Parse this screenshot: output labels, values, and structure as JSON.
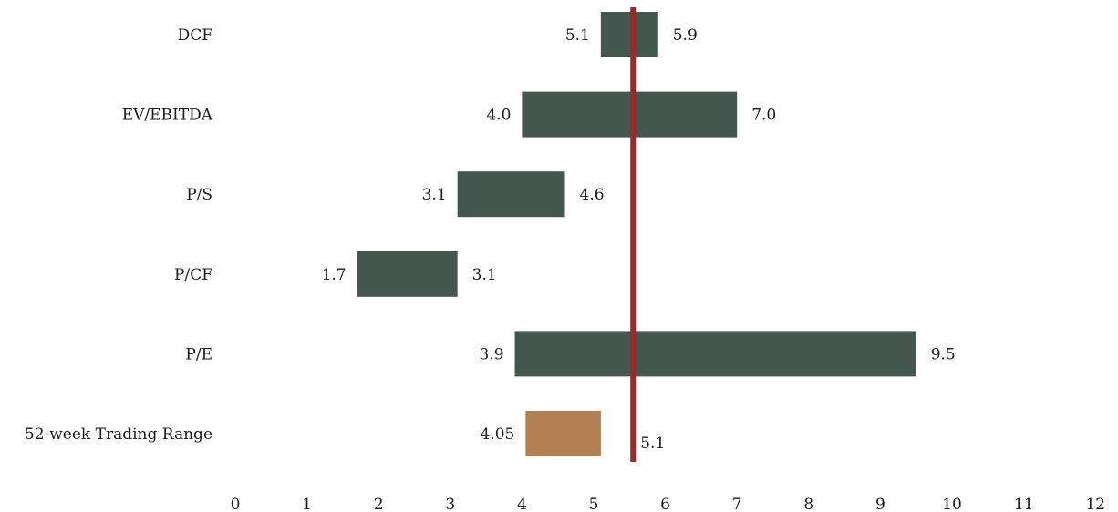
{
  "chart_data": {
    "type": "bar",
    "orientation": "horizontal-range",
    "title": "",
    "xlabel": "",
    "ylabel": "",
    "xlim": [
      0,
      12
    ],
    "x_ticks": [
      "0",
      "1",
      "2",
      "3",
      "4",
      "5",
      "6",
      "7",
      "8",
      "9",
      "10",
      "11",
      "12"
    ],
    "grid": false,
    "legend": "none",
    "colors": {
      "method_bar": "#43574f",
      "trading_range_bar": "#b38052",
      "current_price_line": "#9b2a2a",
      "text": "#1a1a1a"
    },
    "categories": [
      "DCF",
      "EV/EBITDA",
      "P/S",
      "P/CF",
      "P/E",
      "52-week Trading Range"
    ],
    "ranges": [
      {
        "category": "DCF",
        "low": 5.1,
        "high": 5.9,
        "low_label": "5.1",
        "high_label": "5.9",
        "kind": "method"
      },
      {
        "category": "EV/EBITDA",
        "low": 4.0,
        "high": 7.0,
        "low_label": "4.0",
        "high_label": "7.0",
        "kind": "method"
      },
      {
        "category": "P/S",
        "low": 3.1,
        "high": 4.6,
        "low_label": "3.1",
        "high_label": "4.6",
        "kind": "method"
      },
      {
        "category": "P/CF",
        "low": 1.7,
        "high": 3.1,
        "low_label": "1.7",
        "high_label": "3.1",
        "kind": "method"
      },
      {
        "category": "P/E",
        "low": 3.9,
        "high": 9.5,
        "low_label": "3.9",
        "high_label": "9.5",
        "kind": "method"
      },
      {
        "category": "52-week Trading Range",
        "low": 4.05,
        "high": 5.1,
        "low_label": "4.05",
        "high_label": "5.1",
        "kind": "trading"
      }
    ],
    "reference_line": {
      "value": 5.55
    }
  }
}
